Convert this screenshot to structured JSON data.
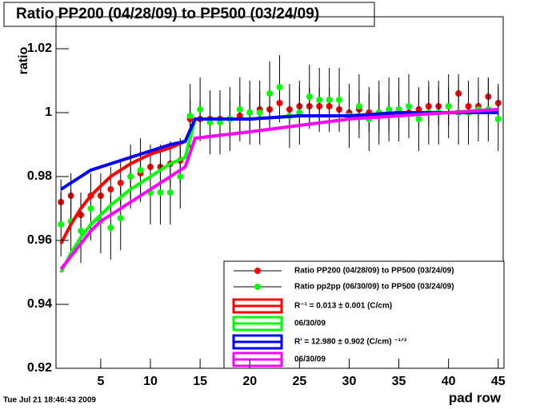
{
  "chart_data": {
    "type": "scatter",
    "title": "Ratio PP200 (04/28/09) to PP500 (03/24/09)",
    "x_label": "pad row",
    "y_label": "ratio",
    "timestamp": "Tue Jul 21 18:46:43 2009",
    "xlim": [
      0.5,
      45.5
    ],
    "ylim": [
      0.92,
      1.03
    ],
    "xticks": [
      5,
      10,
      15,
      20,
      25,
      30,
      35,
      40,
      45
    ],
    "yticks": [
      0.92,
      0.94,
      0.96,
      0.98,
      1,
      1.02
    ],
    "series": [
      {
        "name": "Ratio PP200 (04/28/09) to PP500 (03/24/09)",
        "color": "#ff0000",
        "style": "points",
        "x": [
          1,
          2,
          3,
          4,
          5,
          6,
          7,
          8,
          9,
          10,
          11,
          12,
          13,
          14,
          15,
          16,
          17,
          18,
          19,
          20,
          21,
          22,
          23,
          24,
          25,
          26,
          27,
          28,
          29,
          30,
          31,
          32,
          33,
          34,
          35,
          36,
          37,
          38,
          39,
          40,
          41,
          42,
          43,
          44,
          45
        ],
        "values": [
          0.972,
          0.974,
          0.968,
          0.974,
          0.974,
          0.976,
          0.978,
          0.98,
          0.981,
          0.983,
          0.983,
          0.984,
          0.985,
          0.998,
          0.998,
          0.998,
          0.998,
          0.998,
          0.999,
          1.0,
          1.001,
          1.001,
          1.003,
          1.001,
          1.002,
          1.002,
          1.002,
          1.002,
          1.001,
          1.0,
          1.001,
          1.0,
          1.0,
          1.0,
          1.001,
          1.0,
          1.001,
          1.002,
          1.002,
          1.002,
          1.006,
          1.002,
          1.002,
          1.005,
          1.003
        ],
        "errors": [
          0.007,
          0.007,
          0.007,
          0.007,
          0.007,
          0.007,
          0.007,
          0.007,
          0.007,
          0.007,
          0.007,
          0.007,
          0.007,
          0.006,
          0.006,
          0.006,
          0.006,
          0.006,
          0.006,
          0.006,
          0.006,
          0.006,
          0.006,
          0.006,
          0.006,
          0.006,
          0.006,
          0.006,
          0.006,
          0.006,
          0.006,
          0.006,
          0.006,
          0.006,
          0.006,
          0.006,
          0.006,
          0.006,
          0.006,
          0.006,
          0.006,
          0.006,
          0.006,
          0.006,
          0.006
        ]
      },
      {
        "name": "Ratio pp2pp (06/30/09) to PP500 (03/24/09)",
        "color": "#00ff00",
        "style": "points",
        "x": [
          1,
          2,
          3,
          4,
          5,
          6,
          7,
          8,
          9,
          10,
          11,
          12,
          13,
          14,
          15,
          16,
          17,
          18,
          19,
          20,
          21,
          22,
          23,
          24,
          25,
          26,
          27,
          28,
          29,
          30,
          31,
          32,
          33,
          34,
          35,
          36,
          37,
          38,
          39,
          40,
          41,
          42,
          43,
          44,
          45
        ],
        "values": [
          0.965,
          0.966,
          0.963,
          0.97,
          0.966,
          0.964,
          0.967,
          0.98,
          0.982,
          0.975,
          0.975,
          0.975,
          0.98,
          0.999,
          1.001,
          0.997,
          0.997,
          0.998,
          1.001,
          1.0,
          1.0,
          1.006,
          1.008,
          0.999,
          1.0,
          1.005,
          1.004,
          1.004,
          1.004,
          0.999,
          1.002,
          0.998,
          1.0,
          1.001,
          1.001,
          1.002,
          0.998,
          1.0,
          1.0,
          1.002,
          1.0,
          1.0,
          1.001,
          1.001,
          0.998
        ],
        "errors": [
          0.01,
          0.01,
          0.01,
          0.01,
          0.01,
          0.01,
          0.01,
          0.01,
          0.01,
          0.01,
          0.01,
          0.01,
          0.01,
          0.01,
          0.01,
          0.01,
          0.01,
          0.01,
          0.01,
          0.01,
          0.01,
          0.01,
          0.01,
          0.01,
          0.01,
          0.01,
          0.01,
          0.01,
          0.01,
          0.01,
          0.01,
          0.01,
          0.01,
          0.01,
          0.01,
          0.01,
          0.01,
          0.01,
          0.01,
          0.01,
          0.01,
          0.01,
          0.01,
          0.01,
          0.01
        ]
      },
      {
        "name": "R⁻¹ = 0.013  ± 0.001 (C/cm)",
        "color": "#ff0000",
        "style": "line",
        "x": [
          1,
          2,
          3,
          4,
          5,
          6,
          8,
          10,
          12,
          13.5,
          14.5,
          20,
          25,
          30,
          35,
          40,
          45
        ],
        "values": [
          0.959,
          0.965,
          0.97,
          0.974,
          0.977,
          0.98,
          0.984,
          0.987,
          0.989,
          0.991,
          0.998,
          0.998,
          0.999,
          0.999,
          1.0,
          1.0,
          1.001
        ]
      },
      {
        "name": "06/30/09",
        "color": "#00ff00",
        "style": "line",
        "x": [
          1,
          2,
          3,
          4,
          5,
          6,
          8,
          10,
          12,
          13.5,
          14.5,
          20,
          25,
          30,
          35,
          40,
          45
        ],
        "values": [
          0.95,
          0.956,
          0.961,
          0.965,
          0.968,
          0.971,
          0.976,
          0.98,
          0.984,
          0.986,
          0.998,
          0.998,
          0.999,
          0.999,
          1.0,
          1.0,
          1.001
        ]
      },
      {
        "name": "R' = 12.980  ± 0.902 (C/cm)  ⁻¹ᐟ²",
        "color": "#0000ff",
        "style": "line",
        "x": [
          1,
          2,
          3,
          4,
          5,
          6,
          8,
          10,
          12,
          13.5,
          14.5,
          20,
          25,
          30,
          35,
          40,
          45
        ],
        "values": [
          0.976,
          0.978,
          0.98,
          0.982,
          0.983,
          0.984,
          0.986,
          0.988,
          0.99,
          0.991,
          0.998,
          0.998,
          0.999,
          0.999,
          1.0,
          1.0,
          1.0
        ]
      },
      {
        "name": "06/30/09",
        "color": "#ff00ff",
        "style": "line",
        "x": [
          1,
          2,
          3,
          4,
          5,
          6,
          8,
          10,
          12,
          13.5,
          14.5,
          20,
          25,
          30,
          35,
          40,
          45
        ],
        "values": [
          0.951,
          0.955,
          0.959,
          0.963,
          0.966,
          0.968,
          0.972,
          0.976,
          0.98,
          0.983,
          0.992,
          0.994,
          0.996,
          0.998,
          0.999,
          1.0,
          1.001
        ]
      }
    ]
  }
}
